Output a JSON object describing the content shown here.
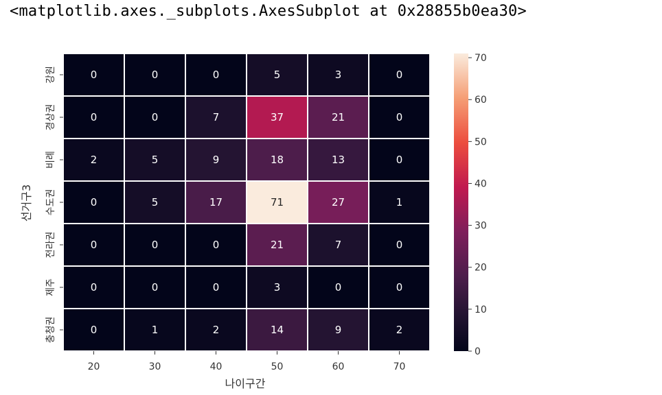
{
  "output_text": "<matplotlib.axes._subplots.AxesSubplot at 0x28855b0ea30>",
  "chart_data": {
    "type": "heatmap",
    "xlabel": "나이구간",
    "ylabel": "선거구3",
    "x_categories": [
      "20",
      "30",
      "40",
      "50",
      "60",
      "70"
    ],
    "y_categories": [
      "강원",
      "경상권",
      "비례",
      "수도권",
      "전라권",
      "제주",
      "충청권"
    ],
    "values": [
      [
        0,
        0,
        0,
        5,
        3,
        0
      ],
      [
        0,
        0,
        7,
        37,
        21,
        0
      ],
      [
        2,
        5,
        9,
        18,
        13,
        0
      ],
      [
        0,
        5,
        17,
        71,
        27,
        1
      ],
      [
        0,
        0,
        0,
        21,
        7,
        0
      ],
      [
        0,
        0,
        0,
        3,
        0,
        0
      ],
      [
        0,
        1,
        2,
        14,
        9,
        2
      ]
    ],
    "vmin": 0,
    "vmax": 71,
    "colormap": "rocket",
    "cell_border_color": "#ffffff",
    "colorbar_ticks": [
      0,
      10,
      20,
      30,
      40,
      50,
      60,
      70
    ],
    "annotations": true
  }
}
